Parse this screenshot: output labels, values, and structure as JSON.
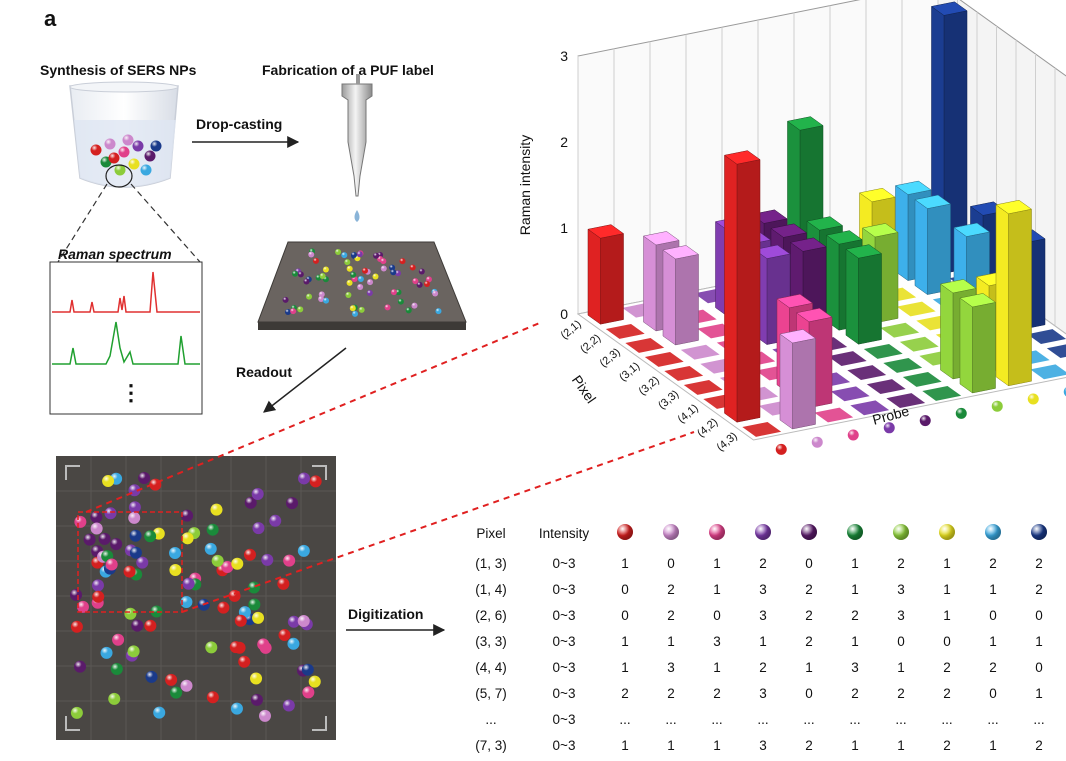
{
  "panel_label": "a",
  "steps": {
    "synthesis": "Synthesis of SERS NPs",
    "fabrication": "Fabrication of a PUF label",
    "drop_casting": "Drop-casting",
    "readout": "Readout",
    "digitization": "Digitization",
    "raman_spectrum": "Raman spectrum",
    "ellipsis": "⋮"
  },
  "colors": {
    "red": "#d42020",
    "pink_light": "#cc88cc",
    "magenta": "#e0408a",
    "purple": "#7a3aa8",
    "purple_dark": "#5a1a6a",
    "green_dark": "#1a8a3a",
    "green_light": "#8ccc3a",
    "yellow": "#e8e020",
    "blue_light": "#3aa8e0",
    "blue_dark": "#1a3a8a",
    "spectrum_red": "#e03030",
    "spectrum_green": "#20a030",
    "dash_red": "#e02020"
  },
  "probes": [
    "red",
    "pink_light",
    "magenta",
    "purple",
    "purple_dark",
    "green_dark",
    "green_light",
    "yellow",
    "blue_light",
    "blue_dark"
  ],
  "chart_data": {
    "type": "bar3d",
    "ylabel": "Raman intensity",
    "zlabel": "Probe",
    "xlabel": "Pixel",
    "yticks": [
      "0",
      "1",
      "2",
      "3"
    ],
    "ylim": [
      0,
      3
    ],
    "pixels": [
      "(2,1)",
      "(2,2)",
      "(2,3)",
      "(3,1)",
      "(3,2)",
      "(3,3)",
      "(4,1)",
      "(4,2)",
      "(4,3)"
    ],
    "values": [
      [
        1,
        0,
        0,
        0,
        0,
        0,
        0,
        0,
        0,
        0
      ],
      [
        0,
        1,
        0,
        1,
        1,
        2,
        0,
        1,
        1,
        3
      ],
      [
        0,
        1,
        0,
        1,
        1,
        1,
        0,
        0,
        1,
        0
      ],
      [
        0,
        0,
        0,
        1,
        1,
        1,
        1,
        0,
        0,
        1
      ],
      [
        0,
        0,
        0,
        0,
        0,
        1,
        0,
        0,
        1,
        0
      ],
      [
        0,
        0,
        0,
        0,
        0,
        0,
        0,
        0,
        0,
        1
      ],
      [
        0,
        0,
        1,
        0,
        0,
        0,
        0,
        0,
        0,
        0
      ],
      [
        3,
        0,
        1,
        0,
        0,
        0,
        1,
        1,
        0,
        0
      ],
      [
        0,
        1,
        0,
        0,
        0,
        0,
        1,
        2,
        0,
        0
      ]
    ]
  },
  "table": {
    "headers": [
      "Pixel",
      "Intensity"
    ],
    "rows": [
      {
        "pixel": "(1, 3)",
        "intensity": "0~3",
        "v": [
          "1",
          "0",
          "1",
          "2",
          "0",
          "1",
          "2",
          "1",
          "2",
          "2"
        ]
      },
      {
        "pixel": "(1, 4)",
        "intensity": "0~3",
        "v": [
          "0",
          "2",
          "1",
          "3",
          "2",
          "1",
          "3",
          "1",
          "1",
          "2"
        ]
      },
      {
        "pixel": "(2, 6)",
        "intensity": "0~3",
        "v": [
          "0",
          "2",
          "0",
          "3",
          "2",
          "2",
          "3",
          "1",
          "0",
          "0"
        ]
      },
      {
        "pixel": "(3, 3)",
        "intensity": "0~3",
        "v": [
          "1",
          "1",
          "3",
          "1",
          "2",
          "1",
          "0",
          "0",
          "1",
          "1"
        ]
      },
      {
        "pixel": "(4, 4)",
        "intensity": "0~3",
        "v": [
          "1",
          "3",
          "1",
          "2",
          "1",
          "3",
          "1",
          "2",
          "2",
          "0"
        ]
      },
      {
        "pixel": "(5, 7)",
        "intensity": "0~3",
        "v": [
          "2",
          "2",
          "2",
          "3",
          "0",
          "2",
          "2",
          "2",
          "0",
          "1"
        ]
      },
      {
        "pixel": "...",
        "intensity": "0~3",
        "v": [
          "...",
          "...",
          "...",
          "...",
          "...",
          "...",
          "...",
          "...",
          "...",
          "..."
        ]
      },
      {
        "pixel": "(7, 3)",
        "intensity": "0~3",
        "v": [
          "1",
          "1",
          "1",
          "3",
          "2",
          "1",
          "1",
          "2",
          "1",
          "2"
        ]
      }
    ]
  }
}
